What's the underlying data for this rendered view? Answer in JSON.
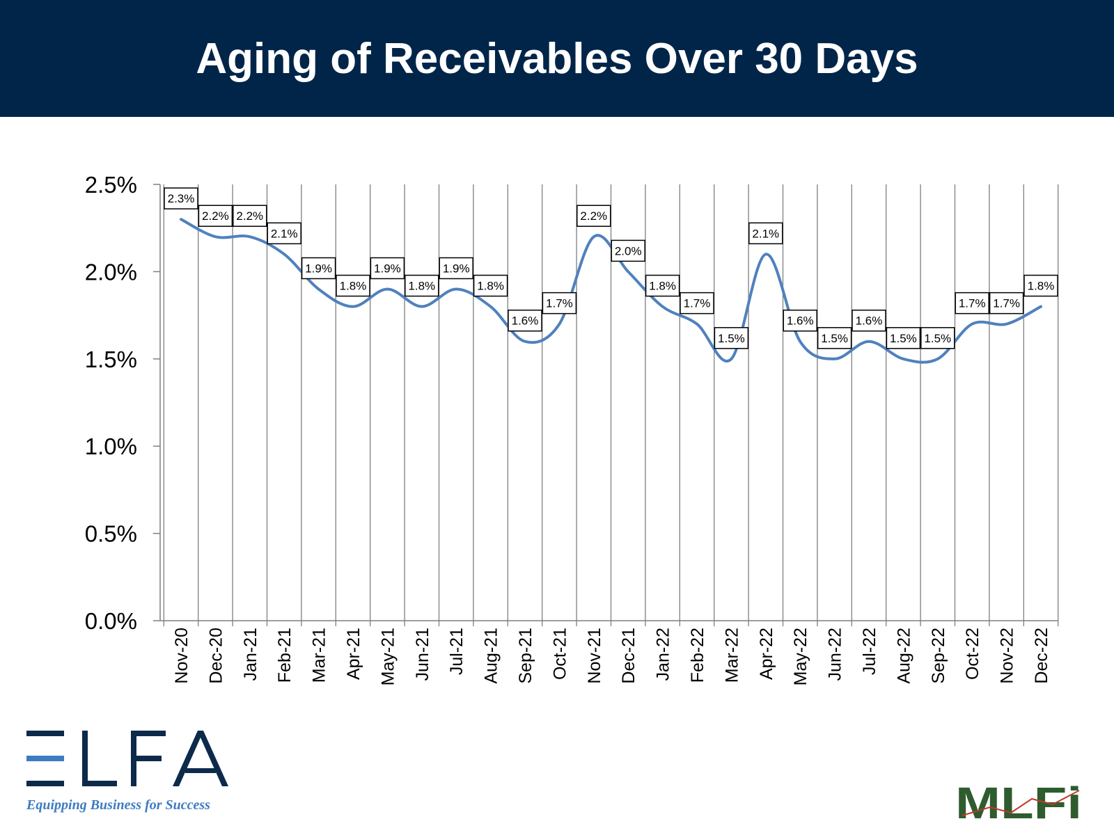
{
  "header": {
    "title": "Aging of Receivables Over 30 Days"
  },
  "colors": {
    "header_bg": "#002549",
    "line": "#4f81bd",
    "grid": "#7f7f7f",
    "elfa_blue": "#3d7cc0",
    "elfa_navy": "#0d2a4a",
    "mlfi_green": "#2e5c2e"
  },
  "logos": {
    "elfa": {
      "text": "ELFA",
      "tagline": "Equipping Business for Success"
    },
    "mlfi": {
      "text": "MLFi"
    }
  },
  "chart_data": {
    "type": "line",
    "title": "Aging of Receivables Over 30 Days",
    "xlabel": "",
    "ylabel": "",
    "ylim": [
      0,
      2.5
    ],
    "y_ticks": [
      "0.0%",
      "0.5%",
      "1.0%",
      "1.5%",
      "2.0%",
      "2.5%"
    ],
    "y_tick_values": [
      0,
      0.5,
      1.0,
      1.5,
      2.0,
      2.5
    ],
    "grid": "vertical",
    "smooth": true,
    "categories": [
      "Nov-20",
      "Dec-20",
      "Jan-21",
      "Feb-21",
      "Mar-21",
      "Apr-21",
      "May-21",
      "Jun-21",
      "Jul-21",
      "Aug-21",
      "Sep-21",
      "Oct-21",
      "Nov-21",
      "Dec-21",
      "Jan-22",
      "Feb-22",
      "Mar-22",
      "Apr-22",
      "May-22",
      "Jun-22",
      "Jul-22",
      "Aug-22",
      "Sep-22",
      "Oct-22",
      "Nov-22",
      "Dec-22"
    ],
    "series": [
      {
        "values": [
          2.3,
          2.2,
          2.2,
          2.1,
          1.9,
          1.8,
          1.9,
          1.8,
          1.9,
          1.8,
          1.6,
          1.7,
          2.2,
          2.0,
          1.8,
          1.7,
          1.5,
          2.1,
          1.6,
          1.5,
          1.6,
          1.5,
          1.5,
          1.7,
          1.7,
          1.8
        ],
        "labels": [
          "2.3%",
          "2.2%",
          "2.2%",
          "2.1%",
          "1.9%",
          "1.8%",
          "1.9%",
          "1.8%",
          "1.9%",
          "1.8%",
          "1.6%",
          "1.7%",
          "2.2%",
          "2.0%",
          "1.8%",
          "1.7%",
          "1.5%",
          "2.1%",
          "1.6%",
          "1.5%",
          "1.6%",
          "1.5%",
          "1.5%",
          "1.7%",
          "1.7%",
          "1.8%"
        ]
      }
    ]
  }
}
